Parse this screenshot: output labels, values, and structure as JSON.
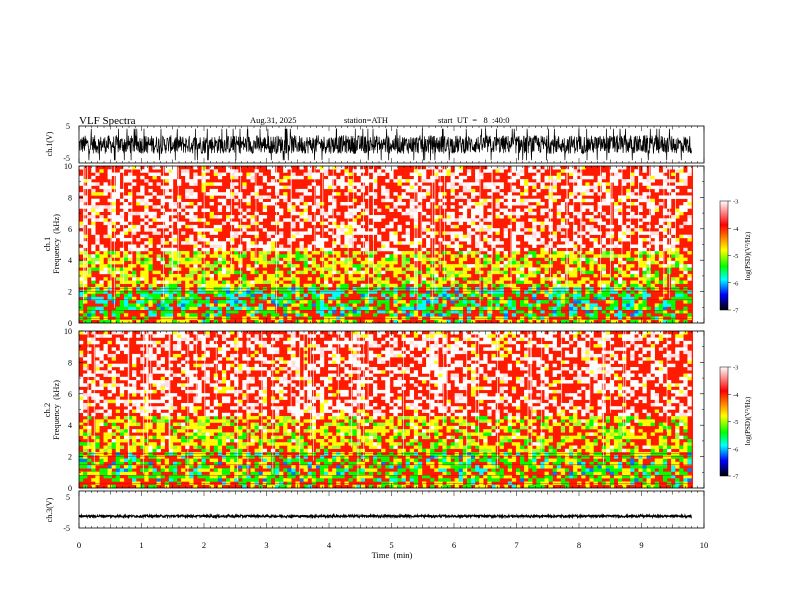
{
  "header": {
    "title": "VLF  Spectra",
    "date": "Aug.31, 2025",
    "station": "station=ATH",
    "start": "start  UT  =   8  :40:0"
  },
  "colorbar": {
    "label": "log(PSD)(V²/Hz)",
    "ticks": [
      "-3",
      "-4",
      "-5",
      "-6",
      "-7"
    ],
    "stops": [
      "#ffffff",
      "#ff0000",
      "#ffff00",
      "#00ff00",
      "#00ffff",
      "#0000ff",
      "#000000"
    ]
  },
  "chart_data": [
    {
      "type": "line",
      "id": "ch1",
      "ylabel": "ch.1(V)",
      "ytick_labels": [
        "5",
        "-5"
      ],
      "ylim": [
        -5,
        5
      ],
      "xlim": [
        0,
        10
      ],
      "data_end_min": 9.8,
      "amplitude_range": [
        -2.5,
        2.5
      ]
    },
    {
      "type": "heatmap",
      "id": "ch1-spectrogram",
      "ylabel_lines": [
        "ch.1",
        "Frequency  (kHz)"
      ],
      "ytick_labels": [
        "10",
        "8",
        "6",
        "4",
        "2",
        "0"
      ],
      "ylim_khz": [
        0,
        10
      ],
      "xlim_min": [
        0,
        10
      ],
      "data_end_min": 9.8,
      "colorbar_range": [
        -7,
        -3
      ]
    },
    {
      "type": "heatmap",
      "id": "ch2-spectrogram",
      "ylabel_lines": [
        "ch.2",
        "Frequency  (kHz)"
      ],
      "ytick_labels": [
        "10",
        "8",
        "6",
        "4",
        "2",
        "0"
      ],
      "ylim_khz": [
        0,
        10
      ],
      "xlim_min": [
        0,
        10
      ],
      "data_end_min": 9.8,
      "colorbar_range": [
        -7,
        -3
      ]
    },
    {
      "type": "line",
      "id": "ch3",
      "ylabel": "ch.3(V)",
      "ytick_labels": [
        "5",
        "-5"
      ],
      "ylim": [
        -5,
        5
      ],
      "xlim": [
        0,
        10
      ],
      "data_end_min": 9.8,
      "amplitude_range": [
        -0.3,
        0.3
      ],
      "offset": -1.8
    }
  ],
  "xaxis": {
    "label": "Time  (min)",
    "tick_labels": [
      "0",
      "1",
      "2",
      "3",
      "4",
      "5",
      "6",
      "7",
      "8",
      "9",
      "10"
    ]
  }
}
